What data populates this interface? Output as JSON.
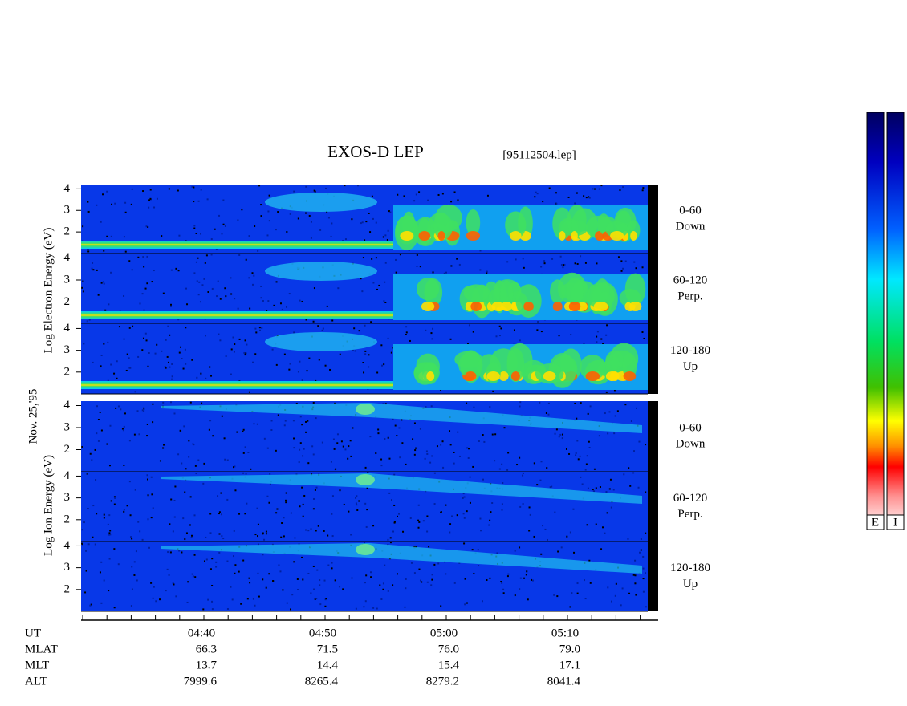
{
  "title": "EXOS-D LEP",
  "file_label": "[95112504.lep]",
  "date": "Nov. 25,'95",
  "electron_label": "Log Electron Energy (eV)",
  "ion_label": "Log Ion Energy (eV)",
  "energy_axis": {
    "ylim": [
      1,
      4.2
    ],
    "yticks": [
      2,
      3,
      4
    ]
  },
  "electron_panels": [
    {
      "range": "0-60",
      "direction": "Down"
    },
    {
      "range": "60-120",
      "direction": "Perp."
    },
    {
      "range": "120-180",
      "direction": "Up"
    }
  ],
  "ion_panels": [
    {
      "range": "0-60",
      "direction": "Down"
    },
    {
      "range": "60-120",
      "direction": "Perp."
    },
    {
      "range": "120-180",
      "direction": "Up"
    }
  ],
  "ephemeris": {
    "rows": [
      {
        "name": "UT",
        "values": [
          "04:40",
          "04:50",
          "05:00",
          "05:10"
        ]
      },
      {
        "name": "MLAT",
        "values": [
          "66.3",
          "71.5",
          "76.0",
          "79.0"
        ]
      },
      {
        "name": "MLT",
        "values": [
          "13.7",
          "14.4",
          "15.4",
          "17.1"
        ]
      },
      {
        "name": "ALT",
        "values": [
          "7999.6",
          "8265.4",
          "8279.2",
          "8041.4"
        ]
      }
    ]
  },
  "colorbars": [
    "E",
    "I"
  ]
}
